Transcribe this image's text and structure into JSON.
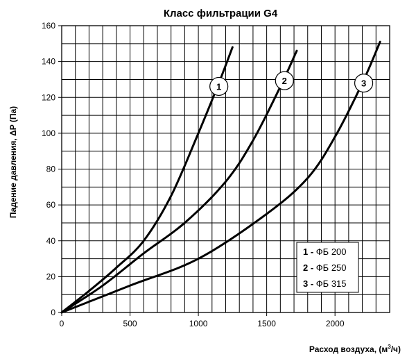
{
  "chart_data": {
    "type": "line",
    "title": "Класс  фильтрации  G4",
    "xlabel": "Расход воздуха, (м³/ч)",
    "ylabel": "Падение давления, ΔP (Па)",
    "xlim": [
      0,
      2400
    ],
    "ylim": [
      0,
      160
    ],
    "x_ticks": [
      0,
      500,
      1000,
      1500,
      2000
    ],
    "y_ticks": [
      0,
      20,
      40,
      60,
      80,
      100,
      120,
      140,
      160
    ],
    "grid": true,
    "grid_x_step": 100,
    "grid_y_step": 10,
    "legend_position": "bottom-right",
    "series": [
      {
        "name": "ФБ 200",
        "marker_label": "1",
        "x": [
          0,
          200,
          400,
          600,
          800,
          1000,
          1150,
          1250
        ],
        "y": [
          0,
          12,
          25,
          40,
          65,
          100,
          128,
          148
        ]
      },
      {
        "name": "ФБ 250",
        "marker_label": "2",
        "x": [
          0,
          300,
          600,
          900,
          1200,
          1400,
          1600,
          1720
        ],
        "y": [
          0,
          15,
          33,
          50,
          73,
          96,
          126,
          146
        ]
      },
      {
        "name": "ФБ 315",
        "marker_label": "3",
        "x": [
          0,
          500,
          1000,
          1500,
          1800,
          2000,
          2200,
          2330
        ],
        "y": [
          0,
          15,
          30,
          55,
          75,
          98,
          128,
          151
        ]
      }
    ],
    "legend": [
      {
        "num": "1",
        "dash": "-",
        "text": "ФБ 200"
      },
      {
        "num": "2",
        "dash": "-",
        "text": "ФБ 250"
      },
      {
        "num": "3",
        "dash": "-",
        "text": "ФБ 315"
      }
    ]
  }
}
